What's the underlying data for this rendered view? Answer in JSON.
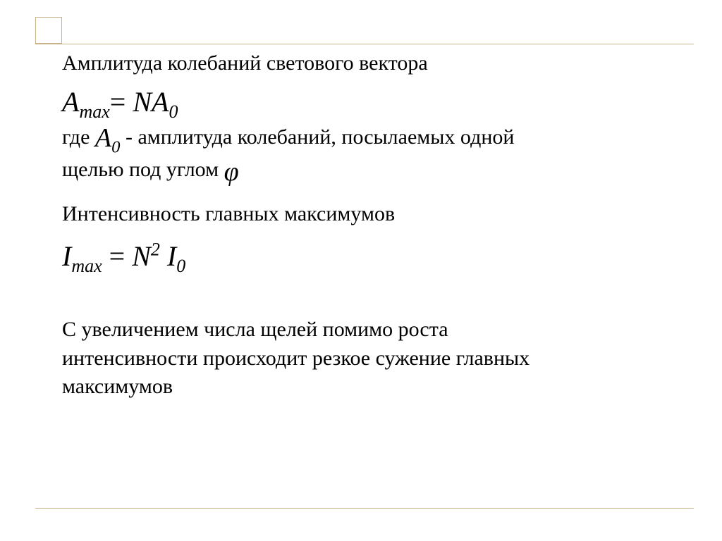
{
  "colors": {
    "text": "#000000",
    "rule": "#c9b48a",
    "background": "#ffffff"
  },
  "typography": {
    "body_font": "Times New Roman",
    "body_size_pt": 22,
    "formula_size_pt": 30
  },
  "text": {
    "line1": "Амплитуда колебаний светового вектора",
    "formula1_Amax": "A",
    "formula1_Amax_sub": "max",
    "formula1_eq": "= ",
    "formula1_N": "N",
    "formula1_A0": "A",
    "formula1_A0_sub": "0",
    "line2_pre": "где ",
    "line2_A0": "A",
    "line2_A0_sub": "0",
    "line2_post": " - амплитуда колебаний, посылаемых одной",
    "line3_pre": "щелью под углом ",
    "line3_phi": "φ",
    "line4": "Интенсивность главных  максимумов",
    "formula2_Imax": "I",
    "formula2_Imax_sub": "max",
    "formula2_eq": " =  ",
    "formula2_N": "N",
    "formula2_N_sup": "2",
    "formula2_sp": " ",
    "formula2_I0": "I",
    "formula2_I0_sub": "0",
    "para_l1": "С увеличением числа щелей помимо роста",
    "para_l2": "интенсивности происходит резкое сужение главных",
    "para_l3": "максимумов"
  }
}
